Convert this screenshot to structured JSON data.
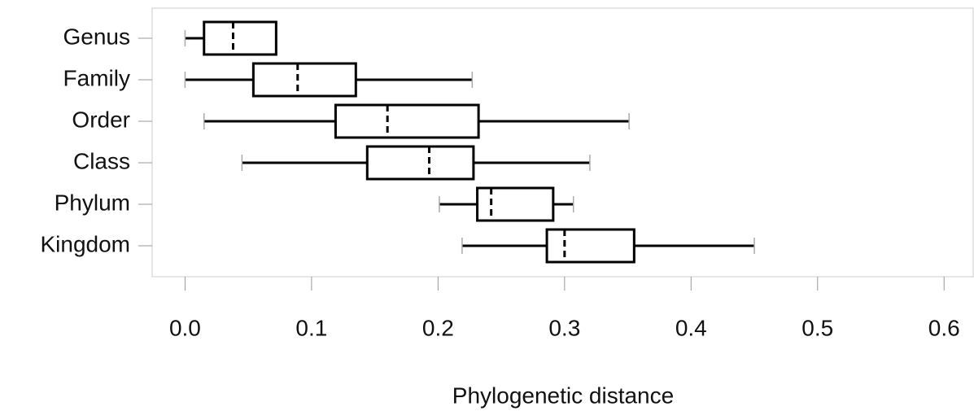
{
  "chart_data": {
    "type": "boxplot",
    "orientation": "horizontal",
    "x_label": "Phylogenetic distance",
    "categories": [
      "Genus",
      "Family",
      "Order",
      "Class",
      "Phylum",
      "Kingdom"
    ],
    "min": [
      0.0,
      0.0,
      0.015,
      0.045,
      0.201,
      0.219
    ],
    "q1": [
      0.015,
      0.054,
      0.119,
      0.144,
      0.231,
      0.286
    ],
    "median": [
      0.038,
      0.089,
      0.16,
      0.193,
      0.242,
      0.3
    ],
    "q3": [
      0.072,
      0.135,
      0.232,
      0.228,
      0.291,
      0.355
    ],
    "max": [
      0.072,
      0.227,
      0.351,
      0.32,
      0.307,
      0.45
    ],
    "color": "#000000",
    "xlim": [
      -0.026,
      0.623
    ],
    "xticks": [
      {
        "value": 0,
        "label": "0.0"
      },
      0.1,
      0.2,
      0.3,
      0.4,
      0.5,
      0.6
    ]
  }
}
